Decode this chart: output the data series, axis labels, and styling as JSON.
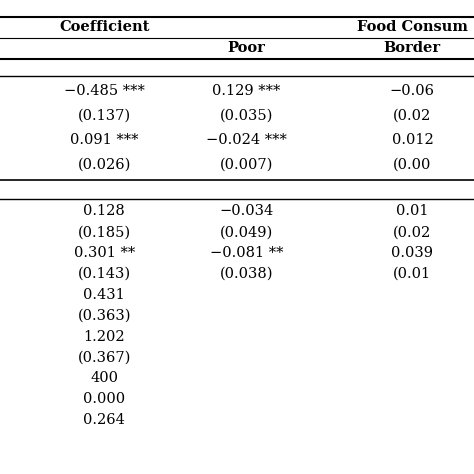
{
  "header_row1_left": "Coefficient",
  "header_row1_right": "Food Consum",
  "header_row2_left": "Poor",
  "header_row2_right": "Border",
  "section1_rows": [
    [
      "−0.485 ***",
      "0.129 ***",
      "−0.06"
    ],
    [
      "(0.137)",
      "(0.035)",
      "(0.02"
    ],
    [
      "0.091 ***",
      "−0.024 ***",
      "0.012"
    ],
    [
      "(0.026)",
      "(0.007)",
      "(0.00"
    ]
  ],
  "section2_rows": [
    [
      "0.128",
      "−0.034",
      "0.01"
    ],
    [
      "(0.185)",
      "(0.049)",
      "(0.02"
    ],
    [
      "0.301 **",
      "−0.081 **",
      "0.039"
    ],
    [
      "(0.143)",
      "(0.038)",
      "(0.01"
    ],
    [
      "0.431",
      "",
      ""
    ],
    [
      "(0.363)",
      "",
      ""
    ],
    [
      "1.202",
      "",
      ""
    ],
    [
      "(0.367)",
      "",
      ""
    ],
    [
      "400",
      "",
      ""
    ],
    [
      "0.000",
      "",
      ""
    ],
    [
      "0.264",
      "",
      ""
    ]
  ],
  "background_color": "#ffffff",
  "text_color": "#000000",
  "line_color": "#000000"
}
